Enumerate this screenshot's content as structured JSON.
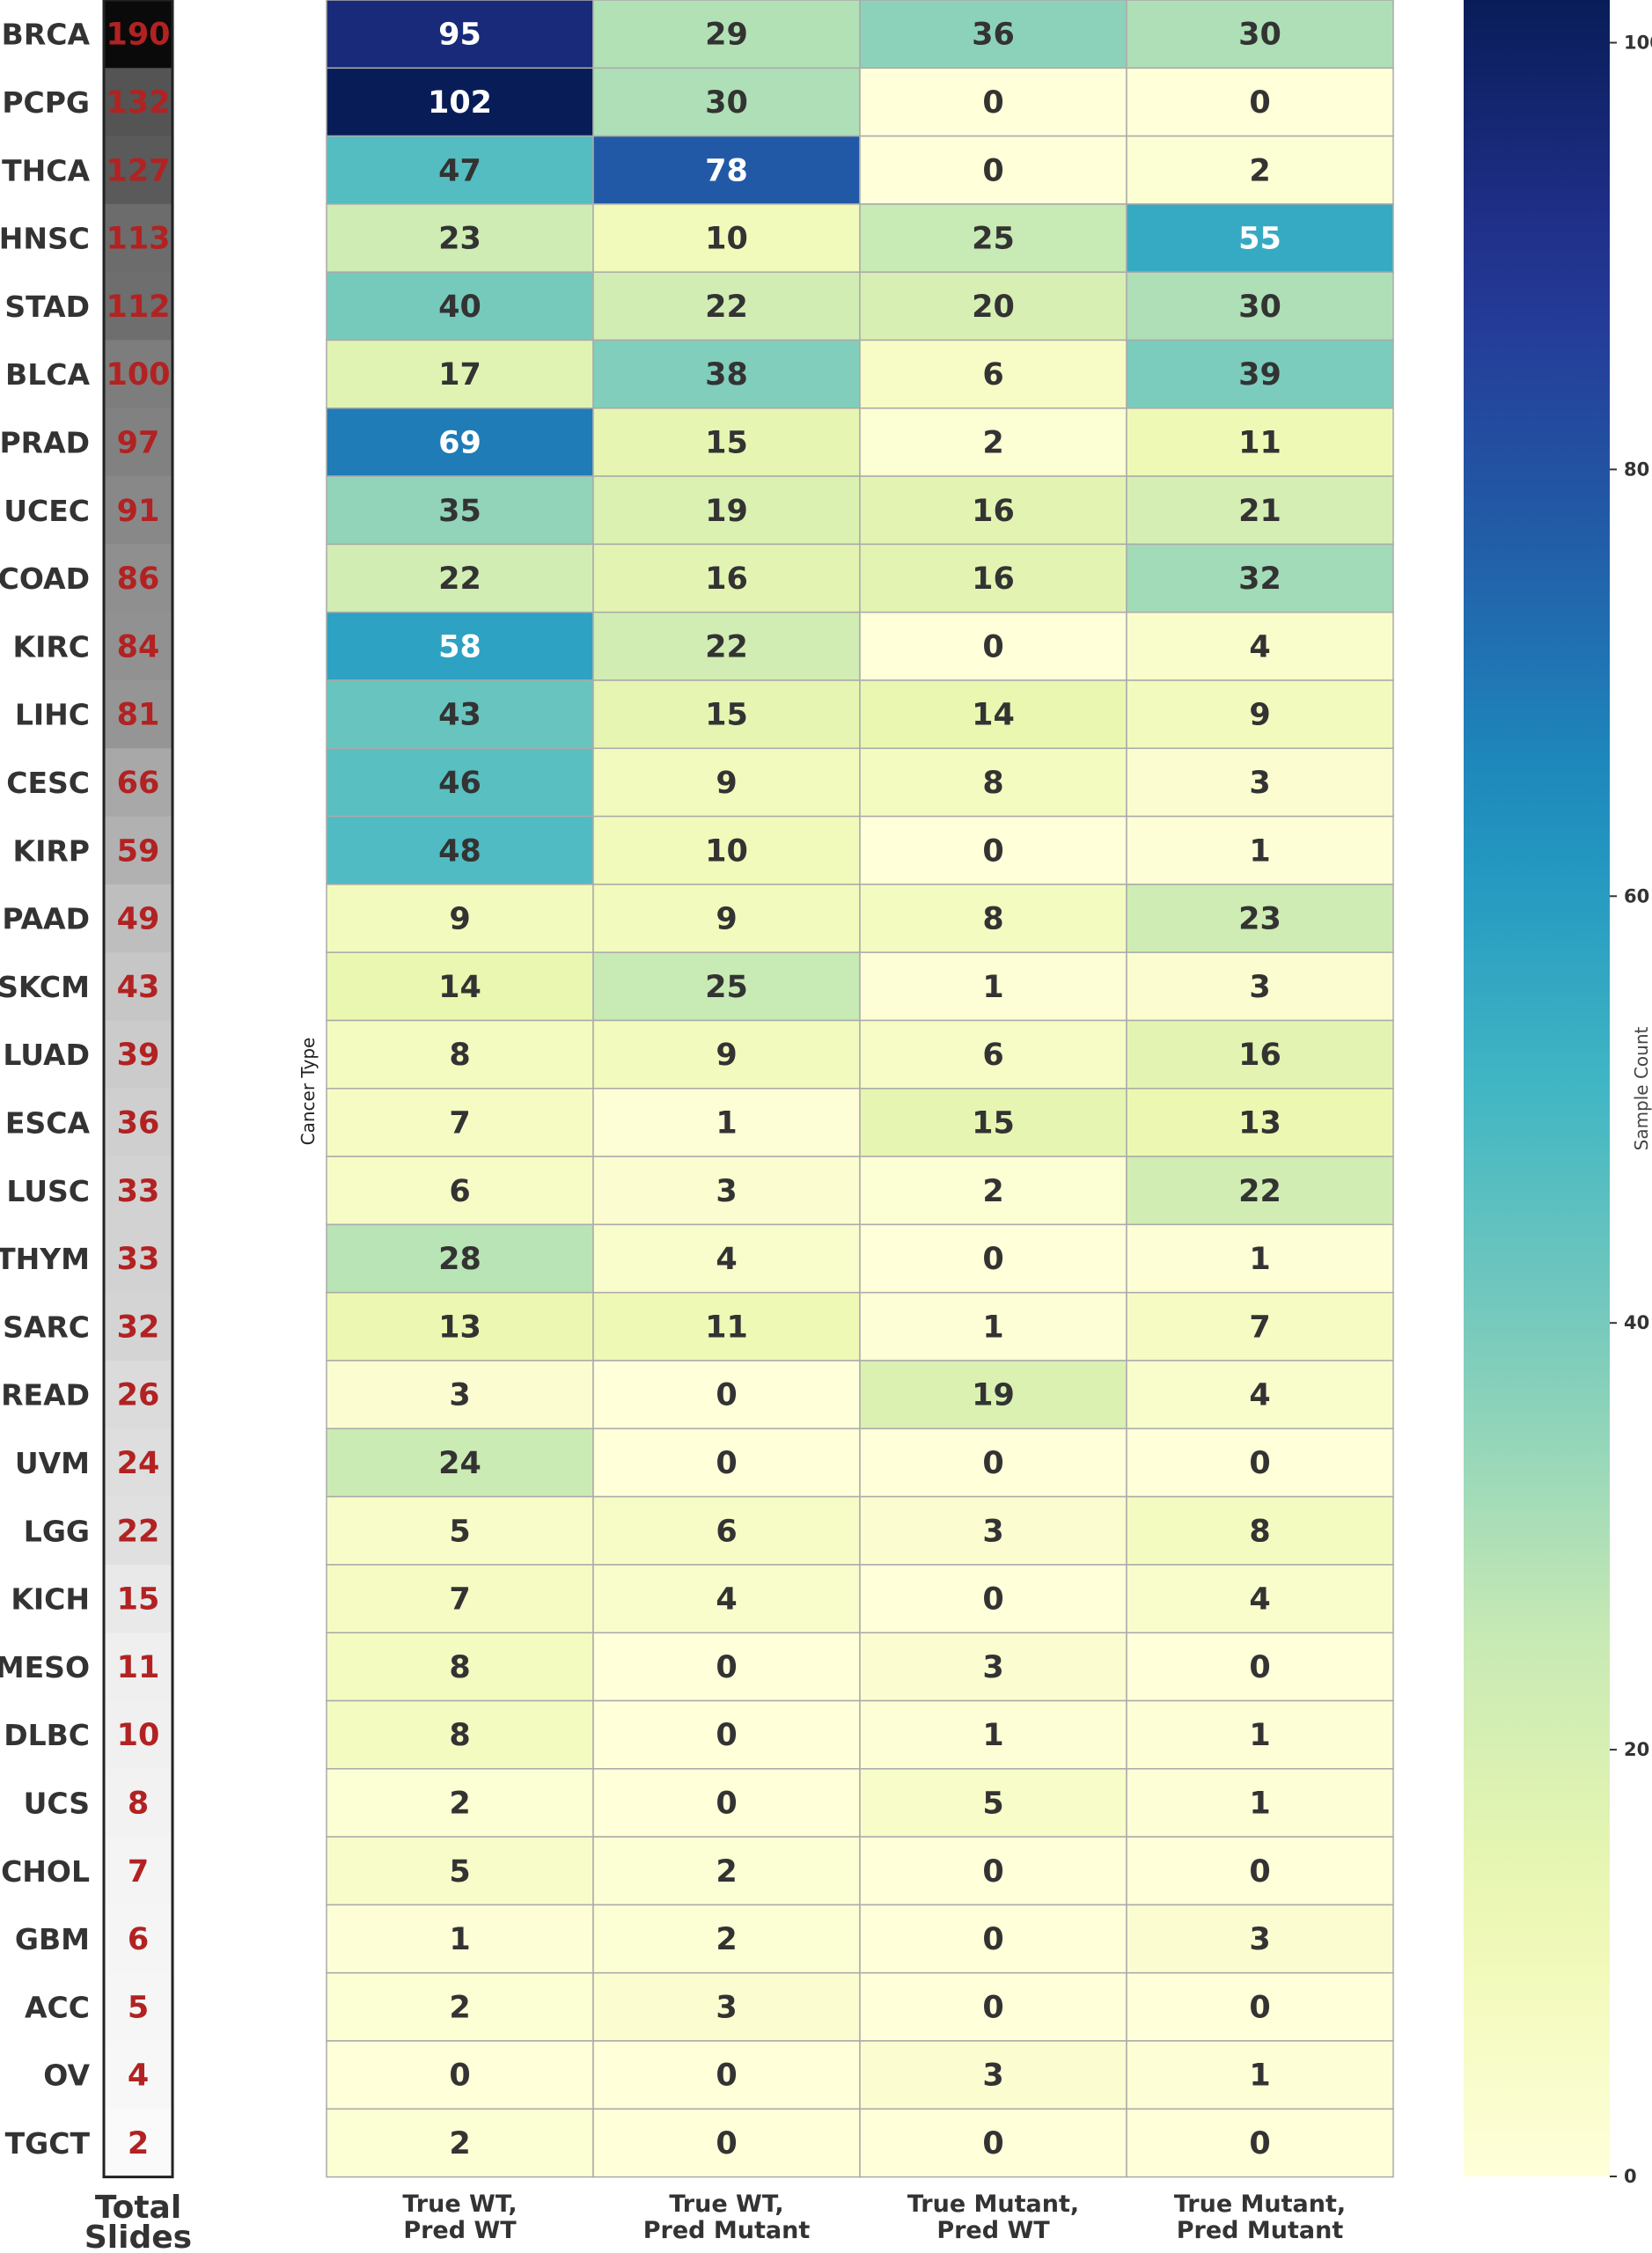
{
  "chart_data": {
    "type": "heatmap",
    "ylabel": "Cancer Type",
    "columns": [
      "True WT,\nPred WT",
      "True WT,\nPred Mutant",
      "True Mutant,\nPred WT",
      "True Mutant,\nPred Mutant"
    ],
    "rows": [
      "BRCA",
      "PCPG",
      "THCA",
      "HNSC",
      "STAD",
      "BLCA",
      "PRAD",
      "UCEC",
      "COAD",
      "KIRC",
      "LIHC",
      "CESC",
      "KIRP",
      "PAAD",
      "SKCM",
      "LUAD",
      "ESCA",
      "LUSC",
      "THYM",
      "SARC",
      "READ",
      "UVM",
      "LGG",
      "KICH",
      "MESO",
      "DLBC",
      "UCS",
      "CHOL",
      "GBM",
      "ACC",
      "OV",
      "TGCT"
    ],
    "values": [
      [
        95,
        29,
        36,
        30
      ],
      [
        102,
        30,
        0,
        0
      ],
      [
        47,
        78,
        0,
        2
      ],
      [
        23,
        10,
        25,
        55
      ],
      [
        40,
        22,
        20,
        30
      ],
      [
        17,
        38,
        6,
        39
      ],
      [
        69,
        15,
        2,
        11
      ],
      [
        35,
        19,
        16,
        21
      ],
      [
        22,
        16,
        16,
        32
      ],
      [
        58,
        22,
        0,
        4
      ],
      [
        43,
        15,
        14,
        9
      ],
      [
        46,
        9,
        8,
        3
      ],
      [
        48,
        10,
        0,
        1
      ],
      [
        9,
        9,
        8,
        23
      ],
      [
        14,
        25,
        1,
        3
      ],
      [
        8,
        9,
        6,
        16
      ],
      [
        7,
        1,
        15,
        13
      ],
      [
        6,
        3,
        2,
        22
      ],
      [
        28,
        4,
        0,
        1
      ],
      [
        13,
        11,
        1,
        7
      ],
      [
        3,
        0,
        19,
        4
      ],
      [
        24,
        0,
        0,
        0
      ],
      [
        5,
        6,
        3,
        8
      ],
      [
        7,
        4,
        0,
        4
      ],
      [
        8,
        0,
        3,
        0
      ],
      [
        8,
        0,
        1,
        1
      ],
      [
        2,
        0,
        5,
        1
      ],
      [
        5,
        2,
        0,
        0
      ],
      [
        1,
        2,
        0,
        3
      ],
      [
        2,
        3,
        0,
        0
      ],
      [
        0,
        0,
        3,
        1
      ],
      [
        2,
        0,
        0,
        0
      ]
    ],
    "total_slides": {
      "title": "Total\nSlides",
      "values": [
        190,
        132,
        127,
        113,
        112,
        100,
        97,
        91,
        86,
        84,
        81,
        66,
        59,
        49,
        43,
        39,
        36,
        33,
        33,
        32,
        26,
        24,
        22,
        15,
        11,
        10,
        8,
        7,
        6,
        5,
        4,
        2
      ],
      "colormap": "greys"
    },
    "colorbar": {
      "label": "Sample Count",
      "colormap": "YlGnBu",
      "range": [
        0,
        102
      ],
      "ticks": [
        0,
        20,
        40,
        60,
        80,
        100
      ]
    }
  }
}
